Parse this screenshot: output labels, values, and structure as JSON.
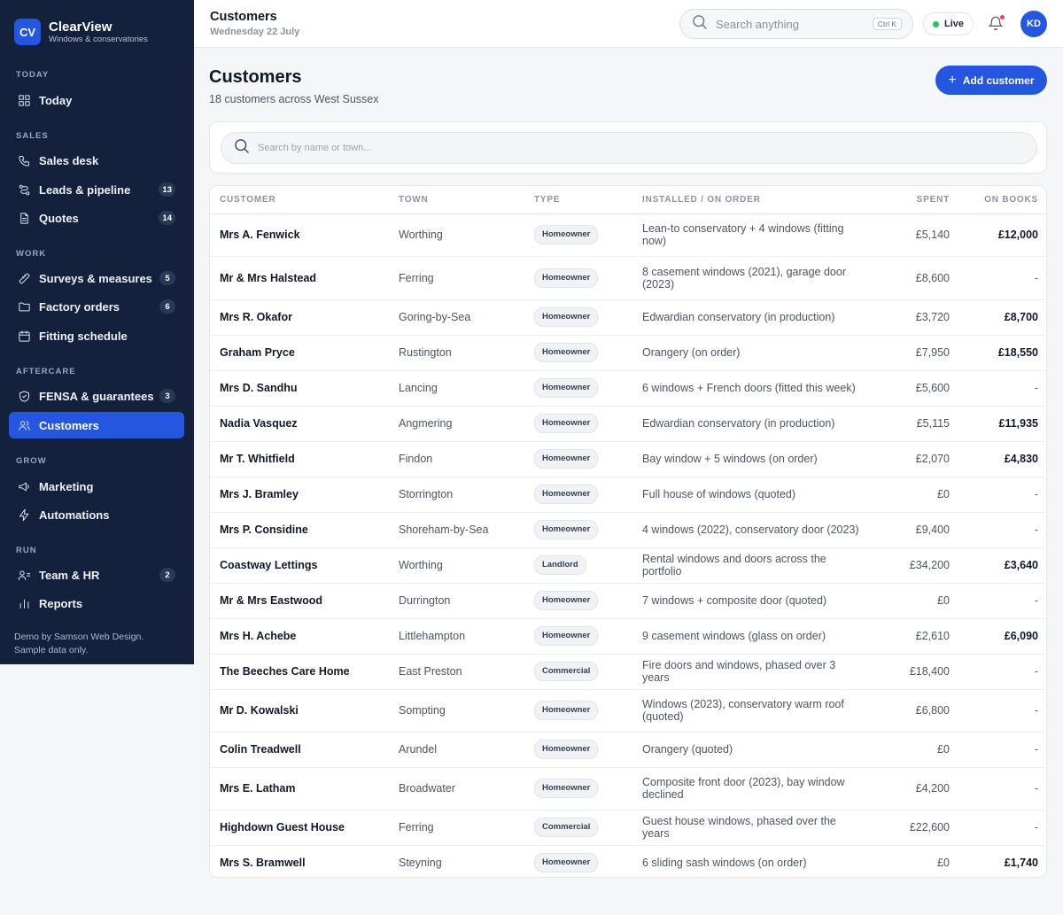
{
  "brand": {
    "logo": "CV",
    "name": "ClearView",
    "tagline": "Windows & conservatories"
  },
  "sidebar": {
    "sections": [
      {
        "label": "Today",
        "items": [
          {
            "label": "Today",
            "icon": "dashboard-icon"
          }
        ]
      },
      {
        "label": "Sales",
        "items": [
          {
            "label": "Sales desk",
            "icon": "phone-icon"
          },
          {
            "label": "Leads & pipeline",
            "icon": "pipeline-icon",
            "badge": "13"
          },
          {
            "label": "Quotes",
            "icon": "document-icon",
            "badge": "14"
          }
        ]
      },
      {
        "label": "Work",
        "items": [
          {
            "label": "Surveys & measures",
            "icon": "ruler-icon",
            "badge": "5"
          },
          {
            "label": "Factory orders",
            "icon": "folder-icon",
            "badge": "6"
          },
          {
            "label": "Fitting schedule",
            "icon": "calendar-icon"
          }
        ]
      },
      {
        "label": "Aftercare",
        "items": [
          {
            "label": "FENSA & guarantees",
            "icon": "shield-icon",
            "badge": "3"
          },
          {
            "label": "Customers",
            "icon": "users-icon",
            "active": true
          }
        ]
      },
      {
        "label": "Grow",
        "items": [
          {
            "label": "Marketing",
            "icon": "megaphone-icon"
          },
          {
            "label": "Automations",
            "icon": "lightning-icon"
          }
        ]
      },
      {
        "label": "Run",
        "items": [
          {
            "label": "Team & HR",
            "icon": "team-icon",
            "badge": "2"
          },
          {
            "label": "Reports",
            "icon": "bar-chart-icon"
          }
        ]
      }
    ],
    "footer_line1": "Demo by Samson Web Design.",
    "footer_line2": "Sample data only."
  },
  "header": {
    "title": "Customers",
    "date": "Wednesday 22 July",
    "search_placeholder": "Search anything",
    "search_shortcut": "Ctrl K",
    "live_label": "Live",
    "avatar_initials": "KD"
  },
  "page": {
    "title": "Customers",
    "subtitle": "18 customers across West Sussex",
    "add_button": "Add customer",
    "filter_placeholder": "Search by name or town..."
  },
  "table": {
    "columns": [
      "Customer",
      "Town",
      "Type",
      "Installed / on order",
      "Spent",
      "On books"
    ],
    "rows": [
      {
        "customer": "Mrs A. Fenwick",
        "town": "Worthing",
        "type": "Homeowner",
        "installed": "Lean-to conservatory + 4 windows (fitting now)",
        "spent": "£5,140",
        "on_books": "£12,000"
      },
      {
        "customer": "Mr & Mrs Halstead",
        "town": "Ferring",
        "type": "Homeowner",
        "installed": "8 casement windows (2021), garage door (2023)",
        "spent": "£8,600",
        "on_books": "-"
      },
      {
        "customer": "Mrs R. Okafor",
        "town": "Goring-by-Sea",
        "type": "Homeowner",
        "installed": "Edwardian conservatory (in production)",
        "spent": "£3,720",
        "on_books": "£8,700"
      },
      {
        "customer": "Graham Pryce",
        "town": "Rustington",
        "type": "Homeowner",
        "installed": "Orangery (on order)",
        "spent": "£7,950",
        "on_books": "£18,550"
      },
      {
        "customer": "Mrs D. Sandhu",
        "town": "Lancing",
        "type": "Homeowner",
        "installed": "6 windows + French doors (fitted this week)",
        "spent": "£5,600",
        "on_books": "-"
      },
      {
        "customer": "Nadia Vasquez",
        "town": "Angmering",
        "type": "Homeowner",
        "installed": "Edwardian conservatory (in production)",
        "spent": "£5,115",
        "on_books": "£11,935"
      },
      {
        "customer": "Mr T. Whitfield",
        "town": "Findon",
        "type": "Homeowner",
        "installed": "Bay window + 5 windows (on order)",
        "spent": "£2,070",
        "on_books": "£4,830"
      },
      {
        "customer": "Mrs J. Bramley",
        "town": "Storrington",
        "type": "Homeowner",
        "installed": "Full house of windows (quoted)",
        "spent": "£0",
        "on_books": "-"
      },
      {
        "customer": "Mrs P. Considine",
        "town": "Shoreham-by-Sea",
        "type": "Homeowner",
        "installed": "4 windows (2022), conservatory door (2023)",
        "spent": "£9,400",
        "on_books": "-"
      },
      {
        "customer": "Coastway Lettings",
        "town": "Worthing",
        "type": "Landlord",
        "installed": "Rental windows and doors across the portfolio",
        "spent": "£34,200",
        "on_books": "£3,640"
      },
      {
        "customer": "Mr & Mrs Eastwood",
        "town": "Durrington",
        "type": "Homeowner",
        "installed": "7 windows + composite door (quoted)",
        "spent": "£0",
        "on_books": "-"
      },
      {
        "customer": "Mrs H. Achebe",
        "town": "Littlehampton",
        "type": "Homeowner",
        "installed": "9 casement windows (glass on order)",
        "spent": "£2,610",
        "on_books": "£6,090"
      },
      {
        "customer": "The Beeches Care Home",
        "town": "East Preston",
        "type": "Commercial",
        "installed": "Fire doors and windows, phased over 3 years",
        "spent": "£18,400",
        "on_books": "-"
      },
      {
        "customer": "Mr D. Kowalski",
        "town": "Sompting",
        "type": "Homeowner",
        "installed": "Windows (2023), conservatory warm roof (quoted)",
        "spent": "£6,800",
        "on_books": "-"
      },
      {
        "customer": "Colin Treadwell",
        "town": "Arundel",
        "type": "Homeowner",
        "installed": "Orangery (quoted)",
        "spent": "£0",
        "on_books": "-"
      },
      {
        "customer": "Mrs E. Latham",
        "town": "Broadwater",
        "type": "Homeowner",
        "installed": "Composite front door (2023), bay window declined",
        "spent": "£4,200",
        "on_books": "-"
      },
      {
        "customer": "Highdown Guest House",
        "town": "Ferring",
        "type": "Commercial",
        "installed": "Guest house windows, phased over the years",
        "spent": "£22,600",
        "on_books": "-"
      },
      {
        "customer": "Mrs S. Bramwell",
        "town": "Steyning",
        "type": "Homeowner",
        "installed": "6 sliding sash windows (on order)",
        "spent": "£0",
        "on_books": "£1,740"
      }
    ]
  },
  "colors": {
    "sidebar_bg": "#14213d",
    "accent": "#2456e0",
    "live_dot": "#22c55e",
    "notification_dot": "#ef4444"
  }
}
